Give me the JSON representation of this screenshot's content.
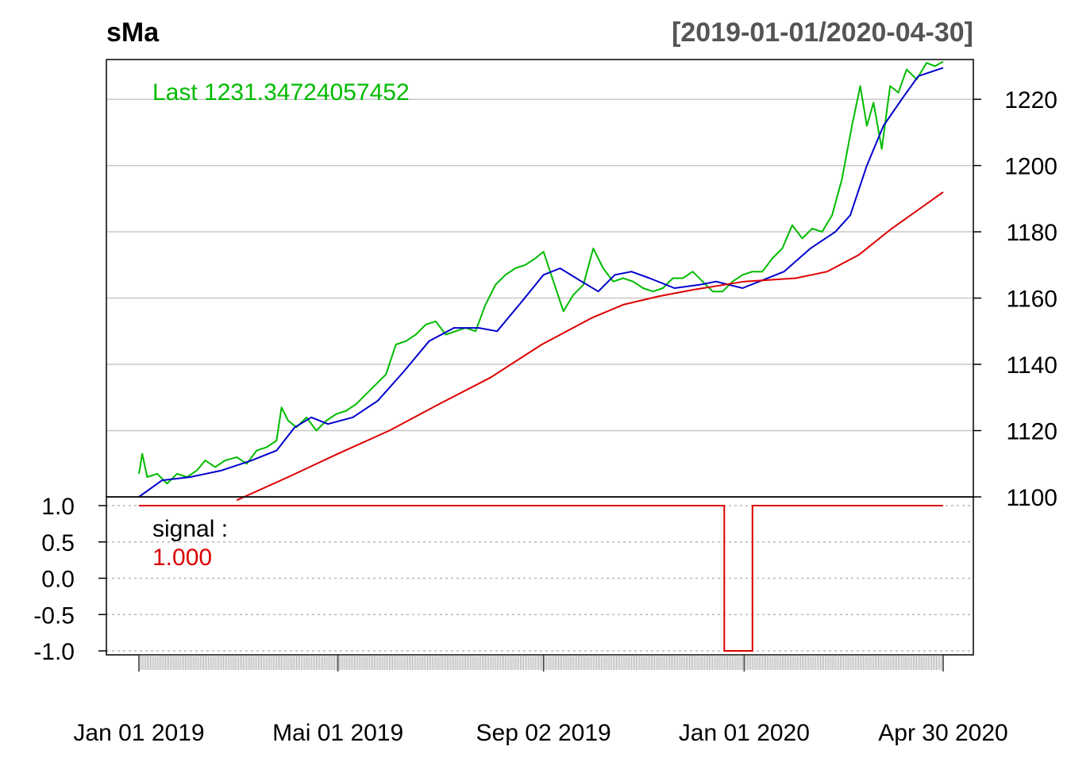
{
  "chart_data": [
    {
      "type": "line",
      "title": "sMa",
      "date_range_label": "[2019-01-01/2020-04-30]",
      "last_label": "Last 1231.34724057452",
      "ylim": [
        1100,
        1232
      ],
      "y_ticks": [
        "1100",
        "1120",
        "1140",
        "1160",
        "1180",
        "1200",
        "1220"
      ],
      "x_tick_labels": [
        "Jan 01 2019",
        "Mai 01 2019",
        "Sep 02 2019",
        "Jan 01 2020",
        "Apr 30 2020"
      ],
      "grid": true,
      "legend_position": "top-left",
      "colors": {
        "price": "#00bb00",
        "ma_short": "#0000cc",
        "ma_long": "#dd0000"
      },
      "series": [
        {
          "key": "price",
          "points": [
            [
              "2019-01-01",
              1107
            ],
            [
              "2019-01-03",
              1113
            ],
            [
              "2019-01-06",
              1106
            ],
            [
              "2019-01-12",
              1107
            ],
            [
              "2019-01-18",
              1104
            ],
            [
              "2019-01-24",
              1107
            ],
            [
              "2019-01-30",
              1106
            ],
            [
              "2019-02-05",
              1108
            ],
            [
              "2019-02-10",
              1111
            ],
            [
              "2019-02-16",
              1109
            ],
            [
              "2019-02-22",
              1111
            ],
            [
              "2019-03-01",
              1112
            ],
            [
              "2019-03-07",
              1110
            ],
            [
              "2019-03-13",
              1114
            ],
            [
              "2019-03-19",
              1115
            ],
            [
              "2019-03-25",
              1117
            ],
            [
              "2019-03-28",
              1127
            ],
            [
              "2019-04-01",
              1123
            ],
            [
              "2019-04-06",
              1121
            ],
            [
              "2019-04-12",
              1124
            ],
            [
              "2019-04-18",
              1120
            ],
            [
              "2019-04-24",
              1123
            ],
            [
              "2019-04-30",
              1125
            ],
            [
              "2019-05-06",
              1126
            ],
            [
              "2019-05-12",
              1128
            ],
            [
              "2019-05-18",
              1131
            ],
            [
              "2019-05-24",
              1134
            ],
            [
              "2019-05-30",
              1137
            ],
            [
              "2019-06-05",
              1146
            ],
            [
              "2019-06-11",
              1147
            ],
            [
              "2019-06-17",
              1149
            ],
            [
              "2019-06-23",
              1152
            ],
            [
              "2019-06-29",
              1153
            ],
            [
              "2019-07-05",
              1149
            ],
            [
              "2019-07-11",
              1150
            ],
            [
              "2019-07-17",
              1151
            ],
            [
              "2019-07-23",
              1150
            ],
            [
              "2019-07-29",
              1158
            ],
            [
              "2019-08-04",
              1164
            ],
            [
              "2019-08-10",
              1167
            ],
            [
              "2019-08-16",
              1169
            ],
            [
              "2019-08-22",
              1170
            ],
            [
              "2019-08-28",
              1172
            ],
            [
              "2019-09-02",
              1174
            ],
            [
              "2019-09-06",
              1168
            ],
            [
              "2019-09-10",
              1162
            ],
            [
              "2019-09-14",
              1156
            ],
            [
              "2019-09-20",
              1161
            ],
            [
              "2019-09-26",
              1164
            ],
            [
              "2019-10-02",
              1175
            ],
            [
              "2019-10-08",
              1169
            ],
            [
              "2019-10-14",
              1165
            ],
            [
              "2019-10-20",
              1166
            ],
            [
              "2019-10-26",
              1165
            ],
            [
              "2019-11-01",
              1163
            ],
            [
              "2019-11-07",
              1162
            ],
            [
              "2019-11-13",
              1163
            ],
            [
              "2019-11-19",
              1166
            ],
            [
              "2019-11-25",
              1166
            ],
            [
              "2019-12-01",
              1168
            ],
            [
              "2019-12-07",
              1165
            ],
            [
              "2019-12-13",
              1162
            ],
            [
              "2019-12-19",
              1162
            ],
            [
              "2019-12-25",
              1165
            ],
            [
              "2019-12-31",
              1167
            ],
            [
              "2020-01-06",
              1168
            ],
            [
              "2020-01-12",
              1168
            ],
            [
              "2020-01-18",
              1172
            ],
            [
              "2020-01-24",
              1175
            ],
            [
              "2020-01-30",
              1182
            ],
            [
              "2020-02-05",
              1178
            ],
            [
              "2020-02-11",
              1181
            ],
            [
              "2020-02-17",
              1180
            ],
            [
              "2020-02-23",
              1185
            ],
            [
              "2020-02-29",
              1196
            ],
            [
              "2020-03-06",
              1212
            ],
            [
              "2020-03-11",
              1224
            ],
            [
              "2020-03-15",
              1212
            ],
            [
              "2020-03-19",
              1219
            ],
            [
              "2020-03-24",
              1205
            ],
            [
              "2020-03-29",
              1224
            ],
            [
              "2020-04-03",
              1222
            ],
            [
              "2020-04-08",
              1229
            ],
            [
              "2020-04-14",
              1226
            ],
            [
              "2020-04-20",
              1231
            ],
            [
              "2020-04-25",
              1230
            ],
            [
              "2020-04-30",
              1231.35
            ]
          ]
        },
        {
          "key": "ma_short",
          "points": [
            [
              "2019-01-01",
              1100
            ],
            [
              "2019-01-15",
              1105
            ],
            [
              "2019-02-01",
              1106
            ],
            [
              "2019-02-20",
              1108
            ],
            [
              "2019-03-10",
              1111
            ],
            [
              "2019-03-25",
              1114
            ],
            [
              "2019-04-05",
              1121
            ],
            [
              "2019-04-15",
              1124
            ],
            [
              "2019-04-25",
              1122
            ],
            [
              "2019-05-10",
              1124
            ],
            [
              "2019-05-25",
              1129
            ],
            [
              "2019-06-10",
              1138
            ],
            [
              "2019-06-25",
              1147
            ],
            [
              "2019-07-10",
              1151
            ],
            [
              "2019-07-25",
              1151
            ],
            [
              "2019-08-05",
              1150
            ],
            [
              "2019-08-20",
              1159
            ],
            [
              "2019-09-02",
              1167
            ],
            [
              "2019-09-12",
              1169
            ],
            [
              "2019-09-25",
              1165
            ],
            [
              "2019-10-05",
              1162
            ],
            [
              "2019-10-15",
              1167
            ],
            [
              "2019-10-25",
              1168
            ],
            [
              "2019-11-05",
              1166
            ],
            [
              "2019-11-20",
              1163
            ],
            [
              "2019-12-05",
              1164
            ],
            [
              "2019-12-15",
              1165
            ],
            [
              "2019-12-31",
              1163
            ],
            [
              "2020-01-10",
              1165
            ],
            [
              "2020-01-25",
              1168
            ],
            [
              "2020-02-10",
              1175
            ],
            [
              "2020-02-25",
              1180
            ],
            [
              "2020-03-05",
              1185
            ],
            [
              "2020-03-15",
              1200
            ],
            [
              "2020-03-25",
              1212
            ],
            [
              "2020-04-05",
              1220
            ],
            [
              "2020-04-15",
              1227
            ],
            [
              "2020-04-30",
              1229.5
            ]
          ]
        },
        {
          "key": "ma_long",
          "points": [
            [
              "2019-03-01",
              1099
            ],
            [
              "2019-04-01",
              1106
            ],
            [
              "2019-05-01",
              1113
            ],
            [
              "2019-06-01",
              1120
            ],
            [
              "2019-07-01",
              1128
            ],
            [
              "2019-08-01",
              1136
            ],
            [
              "2019-09-01",
              1146
            ],
            [
              "2019-10-01",
              1154
            ],
            [
              "2019-10-20",
              1158
            ],
            [
              "2019-11-10",
              1160.5
            ],
            [
              "2019-12-01",
              1162.5
            ],
            [
              "2020-01-01",
              1165
            ],
            [
              "2020-02-01",
              1166
            ],
            [
              "2020-02-20",
              1168
            ],
            [
              "2020-03-10",
              1173
            ],
            [
              "2020-03-30",
              1181
            ],
            [
              "2020-04-30",
              1192
            ]
          ]
        }
      ]
    },
    {
      "type": "line",
      "title": "",
      "legend_title": "signal :",
      "legend_value": "1.000",
      "ylim": [
        -1,
        1
      ],
      "y_ticks": [
        "1.0",
        "0.5",
        "0.0",
        "-0.5",
        "-1.0"
      ],
      "grid": true,
      "colors": {
        "signal": "#dd0000"
      },
      "series": [
        {
          "key": "signal",
          "points": [
            [
              "2019-01-01",
              1
            ],
            [
              "2019-12-20",
              1
            ],
            [
              "2019-12-20",
              -1
            ],
            [
              "2020-01-06",
              -1
            ],
            [
              "2020-01-06",
              1
            ],
            [
              "2020-04-30",
              1
            ]
          ]
        }
      ]
    }
  ]
}
